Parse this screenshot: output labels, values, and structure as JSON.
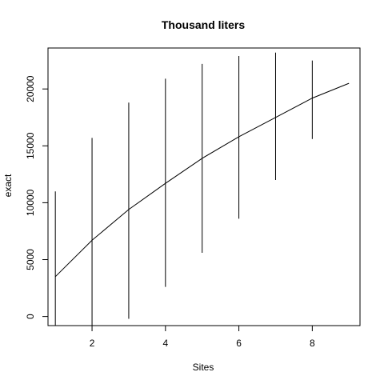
{
  "chart_data": {
    "type": "line",
    "title": "Thousand liters",
    "xlabel": "Sites",
    "ylabel": "exact",
    "xlim": [
      0.8,
      9.3
    ],
    "ylim": [
      -800,
      23600
    ],
    "x_ticks": [
      2,
      4,
      6,
      8
    ],
    "y_ticks": [
      0,
      5000,
      10000,
      15000,
      20000
    ],
    "grid": false,
    "series": [
      {
        "x": [
          1,
          2,
          3,
          4,
          5,
          6,
          7,
          8,
          9
        ],
        "values": [
          3500,
          6700,
          9400,
          11700,
          13900,
          15800,
          17500,
          19200,
          20500
        ]
      }
    ],
    "ranges": [
      {
        "x": 1,
        "low": -800,
        "high": 11000
      },
      {
        "x": 2,
        "low": -800,
        "high": 15700
      },
      {
        "x": 3,
        "low": -200,
        "high": 18800
      },
      {
        "x": 4,
        "low": 2600,
        "high": 20900
      },
      {
        "x": 5,
        "low": 5600,
        "high": 22200
      },
      {
        "x": 6,
        "low": 8600,
        "high": 22900
      },
      {
        "x": 7,
        "low": 12000,
        "high": 23200
      },
      {
        "x": 8,
        "low": 15600,
        "high": 22500
      }
    ]
  }
}
